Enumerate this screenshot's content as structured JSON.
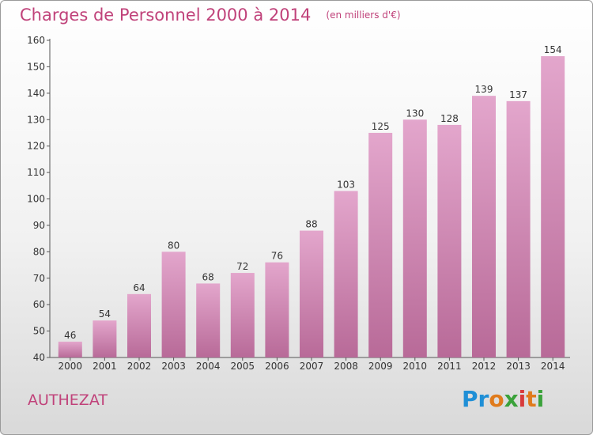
{
  "header": {
    "title": "Charges de Personnel 2000 à 2014",
    "subtitle": "(en milliers d'€)"
  },
  "footer": {
    "commune": "AUTHEZAT",
    "logo": "Proxiti"
  },
  "colors": {
    "accent": "#c0427a",
    "bar_top": "#e3a6cc",
    "bar_bottom": "#b86a98"
  },
  "chart_data": {
    "type": "bar",
    "title": "Charges de Personnel 2000 à 2014",
    "subtitle": "(en milliers d'€)",
    "categories": [
      "2000",
      "2001",
      "2002",
      "2003",
      "2004",
      "2005",
      "2006",
      "2007",
      "2008",
      "2009",
      "2010",
      "2011",
      "2012",
      "2013",
      "2014"
    ],
    "values": [
      46,
      54,
      64,
      80,
      68,
      72,
      76,
      88,
      103,
      125,
      130,
      128,
      139,
      137,
      154
    ],
    "ylim": [
      40,
      160
    ],
    "yticks": [
      40,
      50,
      60,
      70,
      80,
      90,
      100,
      110,
      120,
      130,
      140,
      150,
      160
    ],
    "grid": false,
    "data_labels": true
  }
}
